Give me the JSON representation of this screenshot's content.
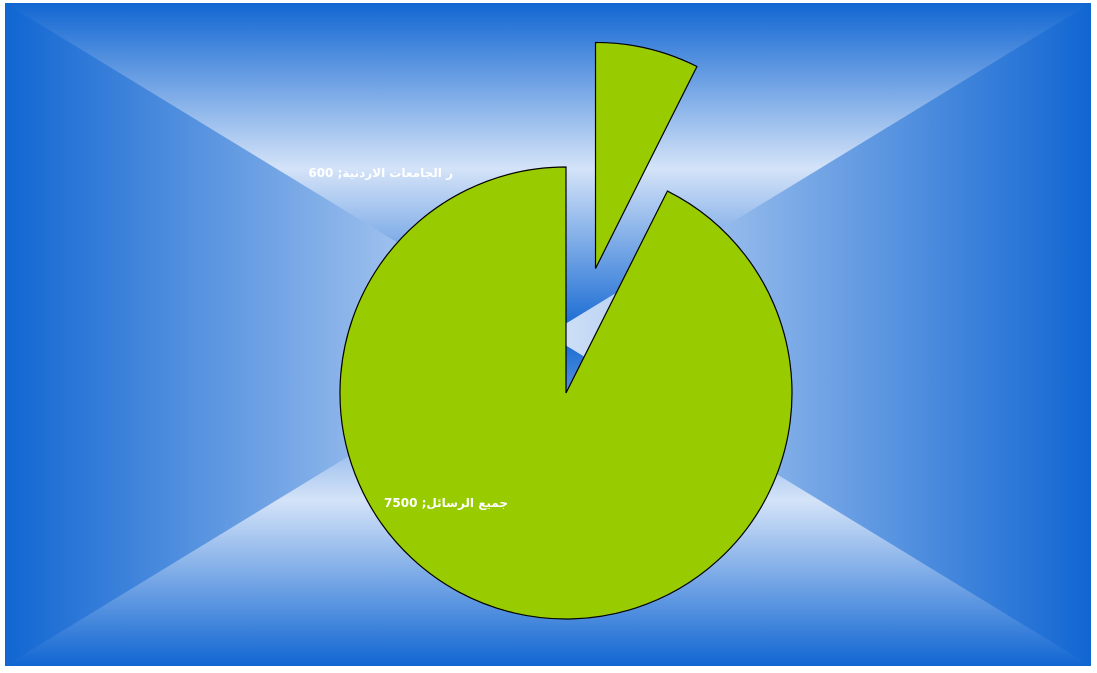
{
  "chart_data": {
    "type": "pie",
    "categories": [
      "جميع الرسائل",
      "ر الجامعات الاردنية"
    ],
    "values": [
      7500,
      600
    ],
    "data_labels": [
      "جميع الرسائل; 7500",
      "ر الجامعات الاردنية; 600"
    ],
    "exploded": [
      false,
      true
    ],
    "slice_color": "#99CC00",
    "background_colors": {
      "edge": "#1166D2",
      "center": "#D4E3F8"
    },
    "legend": "none"
  }
}
